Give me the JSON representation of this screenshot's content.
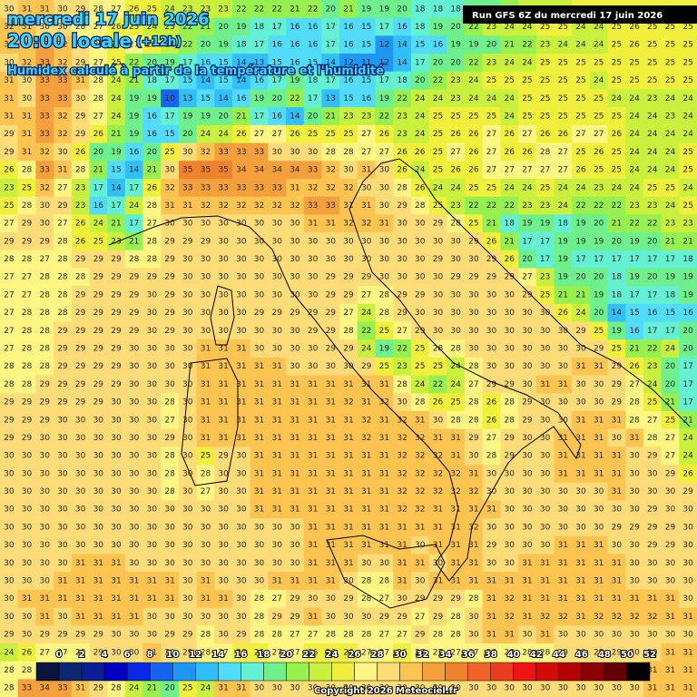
{
  "header": {
    "date": "mercredi 17 juin 2026",
    "time": "20:00 locale",
    "lead": "(+12h)",
    "subtitle": "Humidex calculé à partir de la température et l'humidité"
  },
  "run": "Run GFS 6Z du mercredi 17 juin 2026",
  "copyright": "Copyright 2026 Meteociel.fr",
  "grid": {
    "rows": [
      [
        30,
        31,
        31,
        30,
        29,
        28,
        27,
        26,
        25,
        24,
        23,
        23,
        23,
        22,
        22,
        22,
        21,
        22,
        20,
        21,
        19,
        19,
        20,
        18,
        18,
        18,
        19,
        20,
        22,
        23,
        24,
        24,
        25,
        25,
        25,
        25,
        25,
        25,
        25
      ],
      [
        32,
        31,
        30,
        30,
        28,
        27,
        26,
        25,
        24,
        23,
        22,
        21,
        20,
        19,
        18,
        17,
        16,
        16,
        17,
        16,
        15,
        17,
        16,
        18,
        19,
        20,
        22,
        23,
        24,
        24,
        25,
        25,
        24,
        24,
        25,
        26,
        25,
        25,
        25
      ],
      [
        32,
        31,
        33,
        32,
        30,
        28,
        26,
        27,
        25,
        24,
        22,
        20,
        19,
        18,
        17,
        16,
        16,
        16,
        17,
        16,
        15,
        12,
        14,
        15,
        16,
        19,
        19,
        20,
        21,
        22,
        23,
        24,
        24,
        24,
        25,
        26,
        25,
        25,
        25
      ],
      [
        30,
        32,
        33,
        32,
        29,
        27,
        25,
        22,
        20,
        19,
        17,
        16,
        15,
        14,
        13,
        15,
        16,
        15,
        14,
        12,
        11,
        12,
        14,
        17,
        20,
        20,
        22,
        23,
        24,
        24,
        25,
        25,
        25,
        25,
        25,
        25,
        25,
        25,
        25
      ],
      [
        31,
        30,
        33,
        33,
        31,
        28,
        24,
        21,
        18,
        17,
        15,
        14,
        15,
        14,
        16,
        17,
        19,
        18,
        17,
        16,
        15,
        17,
        18,
        20,
        22,
        23,
        24,
        25,
        25,
        25,
        25,
        25,
        25,
        24,
        25,
        25,
        25,
        25,
        25
      ],
      [
        31,
        30,
        33,
        33,
        30,
        28,
        24,
        19,
        19,
        10,
        13,
        15,
        14,
        16,
        19,
        20,
        22,
        17,
        13,
        15,
        16,
        19,
        22,
        24,
        24,
        23,
        24,
        24,
        24,
        25,
        25,
        25,
        25,
        25,
        24,
        24,
        23,
        24,
        24
      ],
      [
        31,
        31,
        33,
        32,
        29,
        27,
        24,
        19,
        16,
        17,
        19,
        19,
        20,
        21,
        17,
        16,
        14,
        20,
        21,
        23,
        23,
        22,
        23,
        24,
        25,
        25,
        25,
        25,
        24,
        25,
        25,
        25,
        25,
        25,
        25,
        24,
        24,
        23,
        24
      ],
      [
        29,
        31,
        33,
        32,
        29,
        26,
        21,
        19,
        16,
        15,
        20,
        24,
        24,
        26,
        27,
        27,
        26,
        25,
        25,
        25,
        27,
        26,
        23,
        24,
        25,
        26,
        26,
        27,
        26,
        27,
        26,
        26,
        27,
        27,
        26,
        24,
        24,
        24,
        24
      ],
      [
        29,
        31,
        32,
        30,
        26,
        20,
        19,
        16,
        20,
        25,
        30,
        32,
        33,
        33,
        33,
        30,
        30,
        30,
        28,
        28,
        27,
        27,
        26,
        26,
        25,
        27,
        26,
        27,
        26,
        26,
        28,
        27,
        25,
        26,
        25,
        24,
        24,
        24,
        25
      ],
      [
        26,
        28,
        33,
        31,
        28,
        21,
        15,
        14,
        21,
        30,
        35,
        35,
        35,
        34,
        34,
        34,
        34,
        33,
        32,
        30,
        31,
        30,
        26,
        24,
        25,
        26,
        26,
        27,
        27,
        27,
        27,
        27,
        26,
        25,
        25,
        24,
        24,
        24,
        25
      ],
      [
        23,
        25,
        32,
        27,
        23,
        17,
        14,
        17,
        26,
        32,
        33,
        33,
        33,
        33,
        33,
        33,
        31,
        32,
        32,
        32,
        30,
        30,
        28,
        26,
        24,
        24,
        25,
        25,
        24,
        24,
        25,
        24,
        24,
        23,
        24,
        24,
        25,
        25,
        24
      ],
      [
        25,
        28,
        30,
        29,
        23,
        16,
        17,
        24,
        28,
        31,
        31,
        32,
        32,
        32,
        32,
        32,
        32,
        33,
        33,
        31,
        31,
        30,
        29,
        28,
        25,
        23,
        22,
        22,
        22,
        23,
        23,
        24,
        22,
        22,
        22,
        23,
        23,
        24,
        25
      ],
      [
        27,
        29,
        30,
        27,
        26,
        24,
        21,
        17,
        27,
        30,
        30,
        30,
        30,
        30,
        30,
        30,
        30,
        31,
        31,
        32,
        32,
        31,
        30,
        30,
        29,
        28,
        25,
        21,
        18,
        19,
        19,
        18,
        19,
        20,
        21,
        22,
        22,
        23,
        23
      ],
      [
        29,
        29,
        29,
        28,
        26,
        25,
        23,
        21,
        28,
        29,
        29,
        29,
        30,
        30,
        30,
        30,
        30,
        30,
        30,
        30,
        30,
        30,
        30,
        30,
        30,
        30,
        29,
        26,
        21,
        17,
        17,
        19,
        19,
        19,
        20,
        19,
        20,
        21,
        21
      ],
      [
        28,
        28,
        27,
        28,
        29,
        29,
        29,
        28,
        28,
        29,
        30,
        30,
        30,
        30,
        30,
        30,
        30,
        30,
        30,
        30,
        30,
        30,
        30,
        30,
        29,
        30,
        30,
        29,
        26,
        20,
        17,
        19,
        17,
        17,
        17,
        17,
        17,
        17,
        18
      ],
      [
        27,
        27,
        28,
        28,
        28,
        29,
        29,
        29,
        29,
        29,
        30,
        30,
        30,
        30,
        30,
        30,
        30,
        30,
        29,
        29,
        29,
        30,
        30,
        30,
        30,
        29,
        29,
        29,
        29,
        27,
        23,
        19,
        20,
        20,
        18,
        19,
        20,
        19,
        19
      ],
      [
        27,
        27,
        28,
        28,
        29,
        29,
        29,
        29,
        30,
        29,
        30,
        30,
        30,
        30,
        30,
        30,
        30,
        30,
        29,
        29,
        27,
        28,
        29,
        29,
        30,
        30,
        30,
        30,
        30,
        29,
        25,
        21,
        21,
        19,
        18,
        17,
        17,
        18,
        19
      ],
      [
        27,
        28,
        28,
        28,
        29,
        29,
        29,
        29,
        30,
        29,
        30,
        30,
        30,
        30,
        29,
        29,
        29,
        29,
        29,
        27,
        24,
        28,
        29,
        30,
        30,
        30,
        30,
        30,
        30,
        30,
        30,
        26,
        24,
        20,
        14,
        15,
        16,
        15,
        16
      ],
      [
        27,
        28,
        28,
        29,
        29,
        29,
        29,
        29,
        30,
        29,
        30,
        30,
        30,
        30,
        30,
        30,
        30,
        29,
        29,
        28,
        22,
        25,
        27,
        29,
        30,
        30,
        30,
        30,
        30,
        30,
        30,
        30,
        29,
        25,
        19,
        16,
        17,
        17,
        20
      ],
      [
        27,
        28,
        28,
        29,
        29,
        29,
        29,
        30,
        30,
        30,
        30,
        31,
        31,
        31,
        30,
        30,
        30,
        30,
        29,
        29,
        24,
        19,
        22,
        25,
        28,
        28,
        30,
        30,
        30,
        30,
        30,
        30,
        30,
        29,
        25,
        21,
        22,
        24,
        20
      ],
      [
        28,
        28,
        28,
        29,
        29,
        29,
        29,
        30,
        30,
        30,
        30,
        31,
        31,
        31,
        31,
        31,
        30,
        30,
        30,
        30,
        29,
        25,
        23,
        25,
        25,
        24,
        28,
        30,
        30,
        30,
        30,
        30,
        31,
        31,
        29,
        26,
        23,
        20,
        17
      ],
      [
        28,
        28,
        29,
        29,
        29,
        29,
        29,
        30,
        30,
        30,
        30,
        31,
        31,
        31,
        31,
        31,
        31,
        31,
        31,
        31,
        31,
        31,
        28,
        24,
        22,
        24,
        27,
        29,
        29,
        30,
        31,
        31,
        30,
        30,
        29,
        27,
        24,
        20,
        17
      ],
      [
        29,
        29,
        29,
        29,
        29,
        29,
        30,
        30,
        30,
        28,
        30,
        31,
        31,
        31,
        31,
        31,
        31,
        31,
        31,
        32,
        31,
        32,
        30,
        28,
        26,
        25,
        28,
        26,
        28,
        29,
        30,
        30,
        30,
        30,
        29,
        28,
        25,
        21,
        17
      ],
      [
        29,
        29,
        29,
        30,
        30,
        30,
        30,
        30,
        30,
        27,
        30,
        31,
        31,
        31,
        31,
        31,
        31,
        31,
        31,
        31,
        32,
        31,
        32,
        31,
        30,
        28,
        28,
        26,
        28,
        29,
        30,
        30,
        31,
        31,
        31,
        28,
        27,
        25,
        21
      ],
      [
        29,
        29,
        30,
        30,
        30,
        30,
        30,
        30,
        30,
        29,
        30,
        31,
        31,
        31,
        31,
        31,
        31,
        31,
        31,
        31,
        32,
        31,
        32,
        32,
        31,
        31,
        29,
        27,
        29,
        30,
        30,
        31,
        31,
        31,
        30,
        31,
        28,
        27,
        24
      ],
      [
        30,
        30,
        30,
        30,
        30,
        30,
        30,
        30,
        30,
        28,
        30,
        25,
        29,
        30,
        31,
        31,
        31,
        31,
        31,
        31,
        31,
        31,
        32,
        32,
        32,
        31,
        30,
        28,
        29,
        30,
        30,
        31,
        31,
        31,
        31,
        30,
        29,
        27,
        24
      ],
      [
        30,
        30,
        30,
        30,
        30,
        30,
        30,
        30,
        30,
        28,
        30,
        28,
        30,
        30,
        31,
        31,
        31,
        31,
        31,
        31,
        31,
        31,
        32,
        32,
        32,
        32,
        31,
        30,
        30,
        30,
        30,
        31,
        31,
        31,
        31,
        30,
        30,
        29,
        26
      ],
      [
        30,
        30,
        30,
        30,
        30,
        30,
        30,
        30,
        30,
        28,
        30,
        27,
        30,
        30,
        31,
        31,
        31,
        31,
        31,
        31,
        31,
        31,
        32,
        32,
        32,
        32,
        32,
        30,
        30,
        30,
        30,
        30,
        30,
        30,
        31,
        30,
        30,
        30,
        29
      ],
      [
        30,
        30,
        30,
        30,
        30,
        30,
        30,
        30,
        30,
        30,
        30,
        30,
        30,
        30,
        31,
        31,
        31,
        31,
        31,
        31,
        31,
        31,
        32,
        32,
        31,
        31,
        31,
        31,
        30,
        30,
        30,
        30,
        30,
        30,
        30,
        30,
        29,
        30,
        30
      ],
      [
        30,
        30,
        30,
        30,
        30,
        30,
        30,
        30,
        30,
        30,
        30,
        30,
        30,
        30,
        30,
        30,
        30,
        31,
        31,
        31,
        31,
        31,
        31,
        31,
        31,
        31,
        32,
        30,
        30,
        30,
        30,
        30,
        30,
        30,
        29,
        29,
        29,
        29,
        30
      ],
      [
        30,
        30,
        30,
        30,
        30,
        30,
        30,
        30,
        30,
        30,
        30,
        30,
        30,
        30,
        30,
        30,
        30,
        31,
        31,
        31,
        31,
        31,
        31,
        30,
        31,
        31,
        31,
        29,
        30,
        30,
        30,
        31,
        31,
        31,
        30,
        30,
        29,
        29,
        30
      ],
      [
        30,
        30,
        30,
        30,
        31,
        31,
        31,
        30,
        30,
        30,
        30,
        30,
        30,
        30,
        30,
        30,
        30,
        31,
        31,
        31,
        30,
        30,
        31,
        31,
        30,
        31,
        31,
        30,
        30,
        31,
        31,
        31,
        31,
        31,
        31,
        30,
        30,
        30,
        30
      ],
      [
        30,
        30,
        30,
        31,
        31,
        31,
        31,
        31,
        31,
        31,
        30,
        31,
        30,
        30,
        30,
        31,
        31,
        31,
        31,
        30,
        28,
        28,
        31,
        30,
        31,
        31,
        31,
        31,
        31,
        31,
        31,
        31,
        31,
        31,
        31,
        30,
        30,
        30,
        30
      ],
      [
        30,
        31,
        31,
        31,
        31,
        31,
        31,
        31,
        31,
        31,
        30,
        31,
        31,
        30,
        28,
        27,
        29,
        30,
        30,
        29,
        28,
        27,
        30,
        29,
        29,
        29,
        28,
        31,
        32,
        31,
        31,
        31,
        31,
        31,
        31,
        31,
        31,
        31,
        30
      ],
      [
        30,
        30,
        31,
        30,
        31,
        31,
        31,
        31,
        30,
        30,
        30,
        30,
        30,
        30,
        28,
        29,
        29,
        31,
        30,
        30,
        30,
        29,
        29,
        27,
        29,
        28,
        30,
        31,
        32,
        31,
        32,
        32,
        31,
        32,
        32,
        32,
        32,
        31,
        31
      ],
      [
        29,
        30,
        29,
        29,
        29,
        29,
        30,
        30,
        30,
        29,
        29,
        28,
        30,
        29,
        28,
        28,
        27,
        27,
        28,
        28,
        28,
        27,
        27,
        29,
        28,
        28,
        30,
        31,
        31,
        30,
        31,
        30,
        30,
        30,
        30,
        30,
        30,
        30,
        30
      ],
      [
        24,
        26,
        27,
        27,
        28,
        29,
        30,
        30,
        31,
        30,
        29,
        28,
        27,
        26,
        26,
        27,
        27,
        26,
        26,
        26,
        27,
        27,
        26,
        27,
        27,
        27,
        27,
        28,
        28,
        28,
        28,
        29,
        29,
        29,
        29,
        30,
        30,
        31,
        31
      ],
      [
        28,
        28,
        28,
        28,
        28,
        28,
        28,
        28,
        28,
        28,
        28,
        28,
        28,
        28,
        28,
        28,
        28,
        28,
        28,
        28,
        28,
        28,
        28,
        28,
        28,
        28,
        28,
        28,
        28,
        28,
        28,
        28,
        28,
        28,
        28,
        28,
        31,
        31,
        31
      ],
      [
        28,
        33,
        34,
        33,
        31,
        29,
        28,
        24,
        21,
        20,
        25,
        24,
        31,
        31,
        30,
        30,
        30,
        30,
        30,
        30,
        30,
        30,
        30,
        30,
        30,
        30,
        30,
        30,
        30,
        30,
        30,
        30,
        30,
        30,
        30,
        30,
        31,
        31,
        31
      ]
    ]
  },
  "colorbar": {
    "labels": [
      0,
      2,
      4,
      6,
      8,
      10,
      12,
      14,
      16,
      18,
      20,
      22,
      24,
      26,
      28,
      30,
      32,
      34,
      36,
      38,
      40,
      42,
      44,
      46,
      48,
      50,
      52
    ],
    "colors": [
      "#0c1440",
      "#0a2870",
      "#0a1e96",
      "#0000c0",
      "#0a28e6",
      "#1464f0",
      "#1e96f5",
      "#32befa",
      "#50dcfa",
      "#64f0d2",
      "#6ef08c",
      "#96f050",
      "#c8f03c",
      "#f0f03c",
      "#fff582",
      "#ffdc78",
      "#ffc350",
      "#f5a03c",
      "#f0822d",
      "#f06428",
      "#eb3c1e",
      "#f01414",
      "#d20a0a",
      "#b40000",
      "#8c0000",
      "#640000",
      "#000000"
    ]
  }
}
